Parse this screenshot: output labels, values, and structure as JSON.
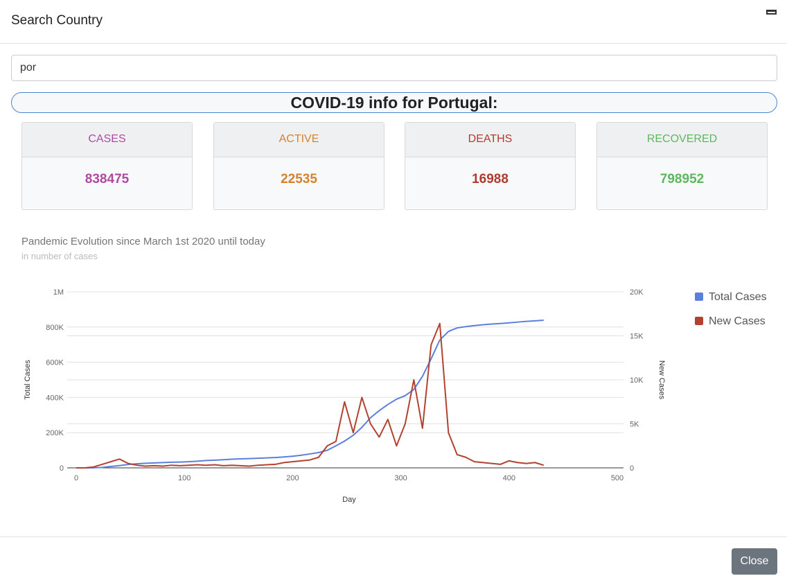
{
  "header": {
    "title": "Search Country"
  },
  "search": {
    "value": "por"
  },
  "banner": {
    "text": "COVID-19 info for Portugal:"
  },
  "stats": [
    {
      "label": "CASES",
      "value": 838475,
      "color": "#b04aa0"
    },
    {
      "label": "ACTIVE",
      "value": 22535,
      "color": "#d5822a"
    },
    {
      "label": "DEATHS",
      "value": 16988,
      "color": "#b03a30"
    },
    {
      "label": "RECOVERED",
      "value": 798952,
      "color": "#5cb85c"
    }
  ],
  "chart_data": {
    "type": "line",
    "title": "Pandemic Evolution since March 1st 2020 until today",
    "subtitle": "in number of cases",
    "x_label": "Day",
    "y_label": "Total Cases",
    "y2_label": "New Cases",
    "grid": true,
    "legend": "right",
    "xlim": [
      0,
      500
    ],
    "xticks": [
      0,
      100,
      200,
      300,
      400,
      500
    ],
    "ylim": [
      0,
      1000000
    ],
    "yticks": [
      {
        "value": 0,
        "label": "0"
      },
      {
        "value": 200000,
        "label": "200K"
      },
      {
        "value": 400000,
        "label": "400K"
      },
      {
        "value": 600000,
        "label": "600K"
      },
      {
        "value": 800000,
        "label": "800K"
      },
      {
        "value": 1000000,
        "label": "1M"
      }
    ],
    "y2lim": [
      0,
      20000
    ],
    "y2ticks": [
      {
        "value": 0,
        "label": "0"
      },
      {
        "value": 5000,
        "label": "5K"
      },
      {
        "value": 10000,
        "label": "10K"
      },
      {
        "value": 15000,
        "label": "15K"
      },
      {
        "value": 20000,
        "label": "20K"
      }
    ],
    "x": [
      0,
      8,
      16,
      24,
      32,
      40,
      48,
      56,
      64,
      72,
      80,
      88,
      96,
      104,
      112,
      120,
      128,
      136,
      144,
      152,
      160,
      168,
      176,
      184,
      192,
      200,
      208,
      216,
      224,
      232,
      240,
      248,
      256,
      264,
      272,
      280,
      288,
      296,
      304,
      312,
      320,
      328,
      336,
      344,
      352,
      360,
      368,
      376,
      384,
      392,
      400,
      408,
      416,
      424,
      432
    ],
    "series": [
      {
        "name": "Total Cases",
        "color": "#5b7fdb",
        "values": [
          0,
          0,
          300,
          2400,
          8000,
          13000,
          19000,
          23000,
          26000,
          28000,
          30000,
          32000,
          33000,
          35000,
          38000,
          42000,
          44000,
          46500,
          49000,
          51000,
          52500,
          54500,
          56500,
          58500,
          62000,
          66000,
          72000,
          79000,
          87000,
          100000,
          125000,
          152000,
          185000,
          230000,
          285000,
          325000,
          360000,
          390000,
          410000,
          445000,
          520000,
          620000,
          726000,
          775000,
          795000,
          802000,
          808000,
          813000,
          817000,
          820000,
          824000,
          828000,
          832000,
          835000,
          838475
        ]
      },
      {
        "name": "New Cases",
        "color": "#b3412f",
        "axis": "y2",
        "values": [
          0,
          2,
          100,
          400,
          700,
          1000,
          500,
          300,
          200,
          250,
          200,
          300,
          250,
          300,
          350,
          300,
          350,
          250,
          300,
          250,
          200,
          300,
          350,
          400,
          600,
          700,
          800,
          900,
          1200,
          2500,
          3000,
          7500,
          4000,
          8000,
          5000,
          3500,
          5500,
          2500,
          5000,
          10000,
          4500,
          14000,
          16400,
          4000,
          1500,
          1200,
          700,
          600,
          500,
          400,
          800,
          600,
          500,
          600,
          300
        ]
      }
    ]
  },
  "footer": {
    "button": "Close"
  }
}
